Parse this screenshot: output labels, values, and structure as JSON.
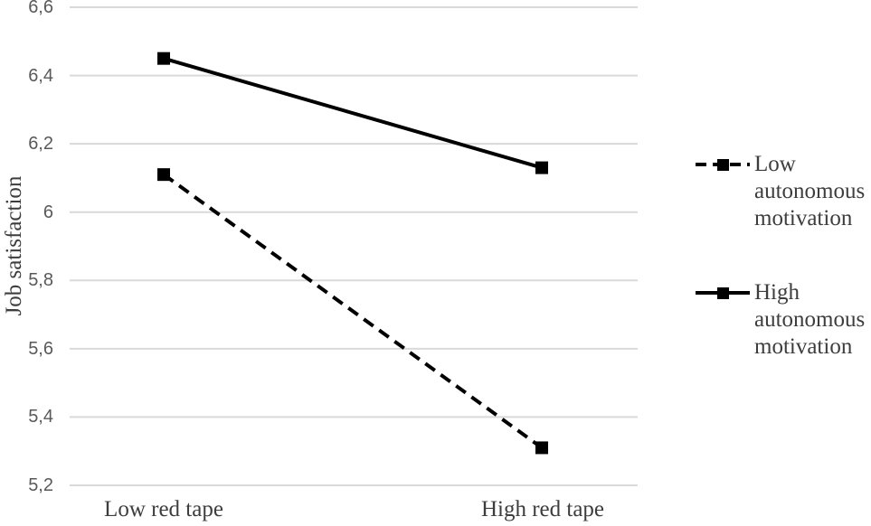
{
  "chart_data": {
    "type": "line",
    "categories": [
      "Low red tape",
      "High red tape"
    ],
    "series": [
      {
        "id": "low-autonomous-motivation",
        "name": "Low autonomous motivation",
        "style": "dashed",
        "marker": "square",
        "color": "#000000",
        "values": [
          6.11,
          5.31
        ]
      },
      {
        "id": "high-autonomous-motivation",
        "name": "High autonomous motivation",
        "style": "solid",
        "marker": "square",
        "color": "#000000",
        "values": [
          6.45,
          6.13
        ]
      }
    ],
    "title": "",
    "xlabel": "",
    "ylabel": "Job satisfaction",
    "ylim": [
      5.2,
      6.6
    ],
    "y_ticks": [
      6.6,
      6.4,
      6.2,
      6.0,
      5.8,
      5.6,
      5.4,
      5.2
    ],
    "y_tick_labels": [
      "6,6",
      "6,4",
      "6,2",
      "6",
      "5,8",
      "5,6",
      "5,4",
      "5,2"
    ],
    "grid": "horizontal",
    "legend_position": "right",
    "colors": {
      "series_line": "#000000",
      "gridline": "#d9d9d9",
      "tick_text": "#595959",
      "label_text": "#3d3d3d",
      "background": "#ffffff"
    }
  }
}
